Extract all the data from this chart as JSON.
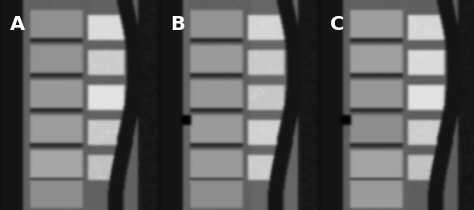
{
  "figsize": [
    4.74,
    2.1
  ],
  "dpi": 100,
  "bg_color": "#1a1a1a",
  "panel_labels": [
    "A",
    "B",
    "C"
  ],
  "label_color": "white",
  "label_fontsize": 14,
  "panel_bg_colors": [
    "#5a5a5a",
    "#606060",
    "#585858"
  ],
  "num_panels": 3,
  "gap_color": "#111111"
}
